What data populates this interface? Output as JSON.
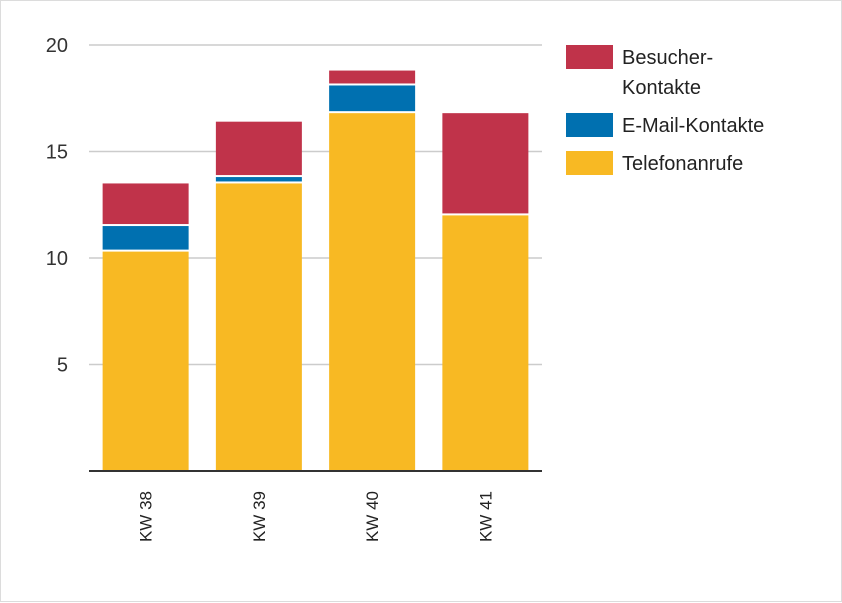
{
  "chart_data": {
    "type": "bar",
    "stacked": true,
    "orientation": "vertical",
    "categories": [
      "KW 38",
      "KW 39",
      "KW 40",
      "KW 41"
    ],
    "series": [
      {
        "name": "Telefonanrufe",
        "color": "#f8b923",
        "values": [
          10.3,
          13.5,
          16.8,
          12.0
        ]
      },
      {
        "name": "E-Mail-Kontakte",
        "color": "#0070b0",
        "values": [
          1.2,
          0.3,
          1.3,
          0.0
        ]
      },
      {
        "name": "Besucher-Kontakte",
        "legend_lines": [
          "Besucher-",
          "Kontakte"
        ],
        "color": "#c0334a",
        "values": [
          2.0,
          2.6,
          0.7,
          4.8
        ]
      }
    ],
    "legend_order": [
      "Besucher-Kontakte",
      "E-Mail-Kontakte",
      "Telefonanrufe"
    ],
    "yticks": [
      5,
      10,
      15,
      20
    ],
    "ylim": [
      0,
      20
    ],
    "grid": true,
    "legend_position": "right",
    "title": "",
    "xlabel": "",
    "ylabel": ""
  }
}
